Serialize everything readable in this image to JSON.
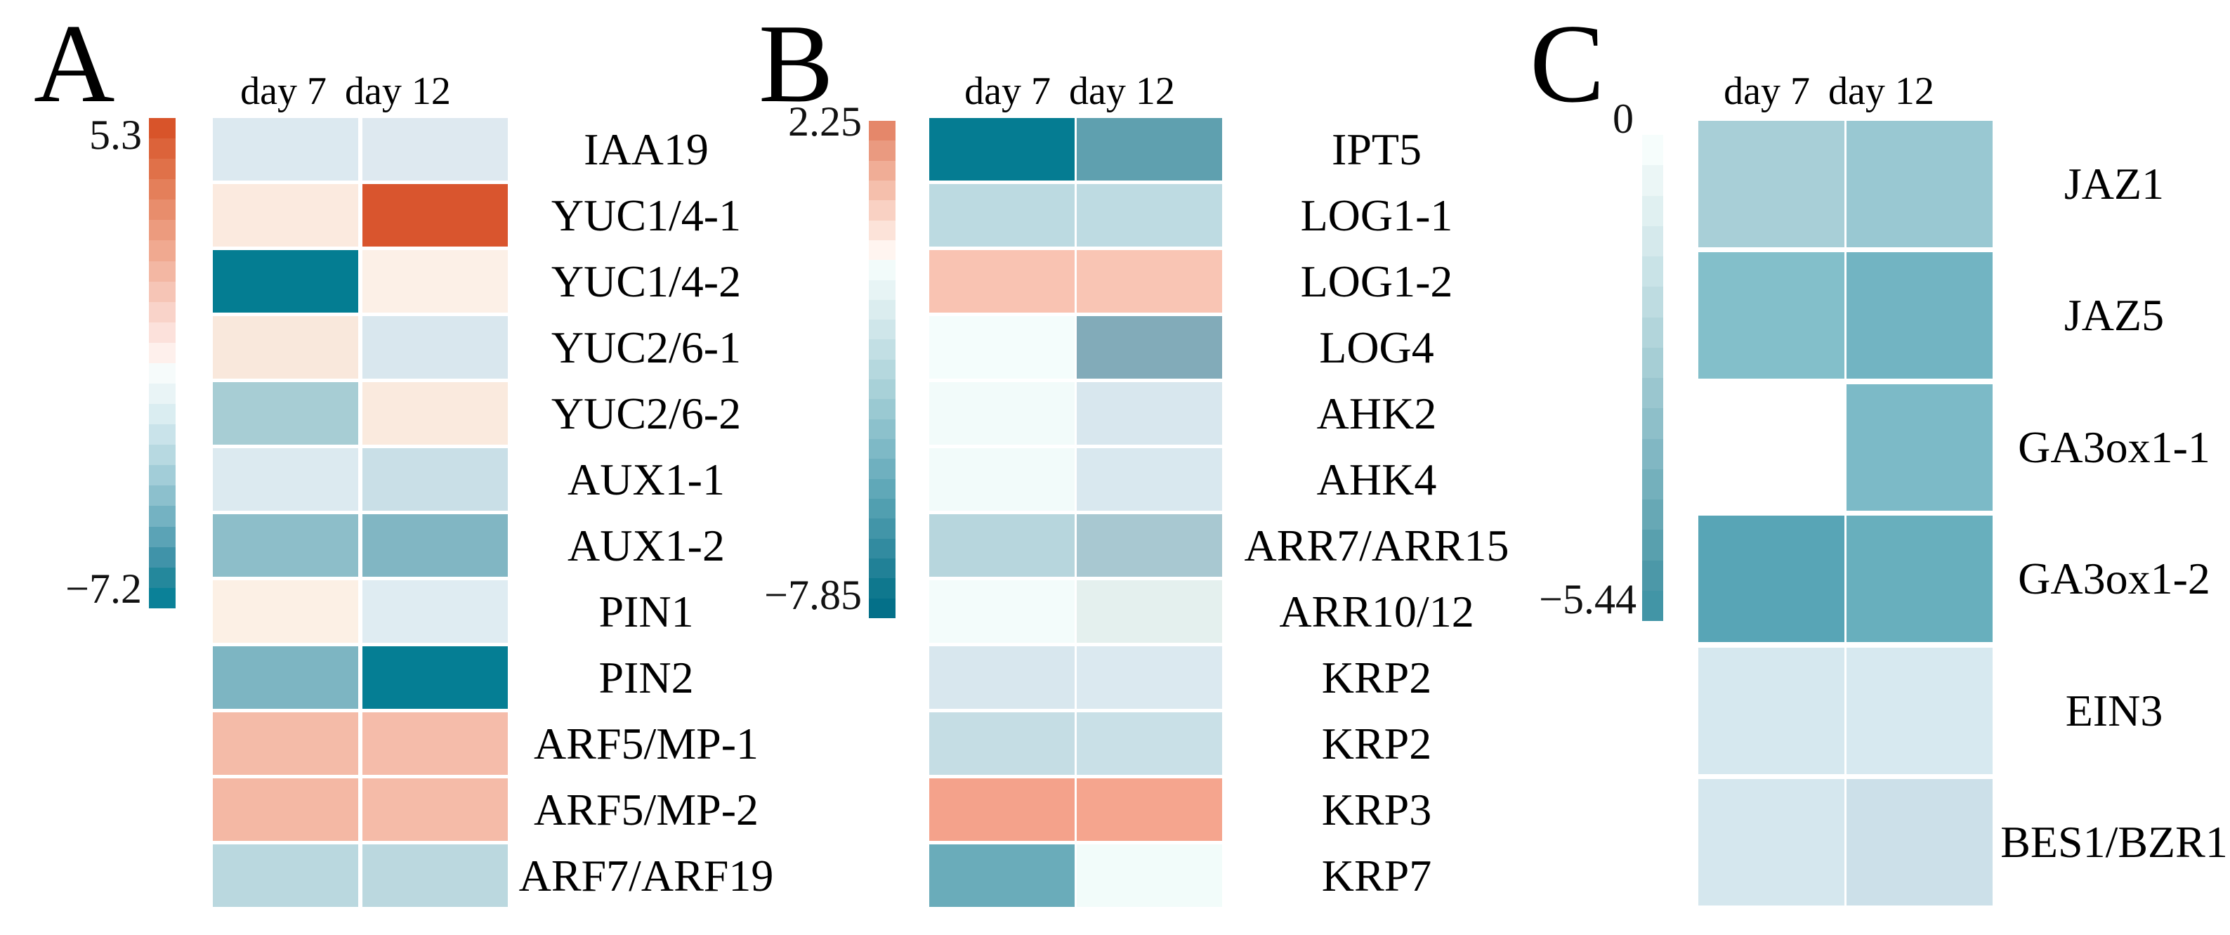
{
  "chart_data": [
    {
      "type": "heatmap",
      "panel": "A",
      "letter": "A",
      "columns": [
        "day 7",
        "day 12"
      ],
      "rows": [
        "IAA19",
        "YUC1/4-1",
        "YUC1/4-2",
        "YUC2/6-1",
        "YUC2/6-2",
        "AUX1-1",
        "AUX1-2",
        "PIN1",
        "PIN2",
        "ARF5/MP-1",
        "ARF5/MP-2",
        "ARF7/ARF19"
      ],
      "values": [
        [
          -0.8,
          -0.8
        ],
        [
          0.3,
          5.2
        ],
        [
          -7.0,
          0.3
        ],
        [
          0.4,
          -0.8
        ],
        [
          -2.6,
          0.4
        ],
        [
          -0.8,
          -1.3
        ],
        [
          -3.3,
          -3.6
        ],
        [
          0.3,
          -0.7
        ],
        [
          -3.7,
          -6.9
        ],
        [
          1.6,
          1.6
        ],
        [
          1.7,
          1.7
        ],
        [
          -1.9,
          -1.9
        ]
      ],
      "cell_colors": [
        [
          "#dce9f0",
          "#dee9f0"
        ],
        [
          "#fbeadf",
          "#d9552e"
        ],
        [
          "#047d92",
          "#fcf0e7"
        ],
        [
          "#f9e8dc",
          "#d9e7ee"
        ],
        [
          "#a7cdd4",
          "#faeade"
        ],
        [
          "#dceaf0",
          "#c9dfe7"
        ],
        [
          "#8dbec9",
          "#81b6c3"
        ],
        [
          "#fcf0e5",
          "#dfecf2"
        ],
        [
          "#7db5c2",
          "#057e94"
        ],
        [
          "#f4bba8",
          "#f5bcaa"
        ],
        [
          "#f4b8a4",
          "#f5bba8"
        ],
        [
          "#bad8df",
          "#bbd8df"
        ]
      ],
      "colorbar": {
        "max_label": "5.3",
        "min_label": "−7.2",
        "max": 5.3,
        "min": -7.2,
        "band_colors": [
          "#d8542a",
          "#dc633a",
          "#e07149",
          "#e47f5a",
          "#e88d6c",
          "#ec9b7e",
          "#f0a990",
          "#f3b7a3",
          "#f6c5b6",
          "#f9d3c9",
          "#fce1db",
          "#fef0ec",
          "#f6fbfb",
          "#e9f4f6",
          "#daedf1",
          "#c9e3ea",
          "#b7d9e1",
          "#a2cdd8",
          "#8cc0cd",
          "#74b2c2",
          "#5ba3b6",
          "#4093a9",
          "#24889c",
          "#0b8198"
        ]
      },
      "legend_position": "left",
      "grid": false
    },
    {
      "type": "heatmap",
      "panel": "B",
      "letter": "B",
      "columns": [
        "day 7",
        "day 12"
      ],
      "rows": [
        "IPT5",
        "LOG1-1",
        "LOG1-2",
        "LOG4",
        "AHK2",
        "AHK4",
        "ARR7/ARR15",
        "ARR10/12",
        "KRP2",
        "KRP2",
        "KRP3",
        "KRP7"
      ],
      "values": [
        [
          -7.6,
          -4.2
        ],
        [
          -1.9,
          -1.8
        ],
        [
          1.1,
          1.1
        ],
        [
          -0.2,
          -4.5
        ],
        [
          -0.3,
          -1.3
        ],
        [
          -0.3,
          -1.3
        ],
        [
          -2.1,
          -2.9
        ],
        [
          -0.2,
          -0.9
        ],
        [
          -1.3,
          -1.2
        ],
        [
          -1.8,
          -1.7
        ],
        [
          1.7,
          1.6
        ],
        [
          -4.8,
          -0.2
        ]
      ],
      "cell_colors": [
        [
          "#057c92",
          "#5fa0af"
        ],
        [
          "#bcdae1",
          "#bedbe2"
        ],
        [
          "#f9c3b2",
          "#f9c5b4"
        ],
        [
          "#f4fdfc",
          "#82abb9"
        ],
        [
          "#f2fbfa",
          "#d8e7ee"
        ],
        [
          "#f2fbfa",
          "#d9e8ef"
        ],
        [
          "#b7d6dd",
          "#a8c8d1"
        ],
        [
          "#f3fcfb",
          "#e4f0ee"
        ],
        [
          "#d8e7ee",
          "#dbe9f0"
        ],
        [
          "#c5dde4",
          "#c9e0e7"
        ],
        [
          "#f4a28b",
          "#f5a58e"
        ],
        [
          "#6aacba",
          "#f2fcfa"
        ]
      ],
      "colorbar": {
        "max_label": "2.25",
        "min_label": "−7.85",
        "max": 2.25,
        "min": -7.85,
        "band_colors": [
          "#e5876a",
          "#ea9a80",
          "#f0ad96",
          "#f5bfac",
          "#f9d1c3",
          "#fce3d9",
          "#fff5f0",
          "#f2fbfa",
          "#e7f4f5",
          "#dbedef",
          "#cfe6ea",
          "#c2dfe4",
          "#b5d8de",
          "#a8d1d8",
          "#9ac9d2",
          "#8cc1cc",
          "#7eb9c6",
          "#6fb0bf",
          "#60a8b8",
          "#519fb0",
          "#4295a8",
          "#328ba0",
          "#218197",
          "#0f788e",
          "#047089"
        ]
      },
      "legend_position": "left",
      "grid": false
    },
    {
      "type": "heatmap",
      "panel": "C",
      "letter": "C",
      "columns": [
        "day 7",
        "day 12"
      ],
      "rows": [
        "JAZ1",
        "JAZ5",
        "GA3ox1-1",
        "GA3ox1-2",
        "EIN3",
        "BES1/BZR1"
      ],
      "values": [
        [
          -1.9,
          -2.3
        ],
        [
          -2.9,
          -3.5
        ],
        [
          null,
          -3.1
        ],
        [
          -4.2,
          -3.7
        ],
        [
          -0.8,
          -0.8
        ],
        [
          -0.9,
          -1.2
        ]
      ],
      "cell_colors": [
        [
          "#a8cfd7",
          "#99c8d2"
        ],
        [
          "#83bfca",
          "#72b4c2"
        ],
        [
          null,
          "#7cbac7"
        ],
        [
          "#58a5b6",
          "#68afbd"
        ],
        [
          "#d6e8ef",
          "#d7e9f0"
        ],
        [
          "#d5e7ee",
          "#cce0e9"
        ]
      ],
      "colorbar": {
        "max_label": "0",
        "min_label": "−5.44",
        "max": 0,
        "min": -5.44,
        "band_colors": [
          "#f6fdfc",
          "#ebf6f6",
          "#e0f0f1",
          "#d5e9ec",
          "#c9e3e7",
          "#bedce1",
          "#b2d5db",
          "#a6ced5",
          "#9ac6cf",
          "#8ebfc9",
          "#81b7c3",
          "#74b0bc",
          "#67a8b5",
          "#59a0ae",
          "#4c98a8",
          "#4295a6"
        ]
      },
      "legend_position": "left",
      "grid": false
    }
  ]
}
